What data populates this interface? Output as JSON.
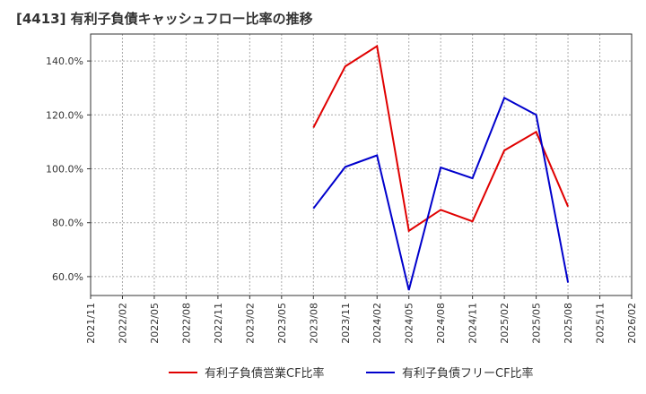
{
  "chart_data": {
    "type": "line",
    "title": "[4413]  有利子負債キャッシュフロー比率の推移",
    "xlabel": "",
    "ylabel": "",
    "ylim": [
      53,
      150
    ],
    "yticks": [
      {
        "value": 60,
        "label": "60.0%"
      },
      {
        "value": 80,
        "label": "80.0%"
      },
      {
        "value": 100,
        "label": "100.0%"
      },
      {
        "value": 120,
        "label": "120.0%"
      },
      {
        "value": 140,
        "label": "140.0%"
      }
    ],
    "xticks": [
      "2021/11",
      "2022/02",
      "2022/05",
      "2022/08",
      "2022/11",
      "2023/02",
      "2023/05",
      "2023/08",
      "2023/11",
      "2024/02",
      "2024/05",
      "2024/08",
      "2024/11",
      "2025/02",
      "2025/05",
      "2025/08",
      "2025/11",
      "2026/02"
    ],
    "grid": true,
    "legend_position": "bottom",
    "series": [
      {
        "name": "有利子負債営業CF比率",
        "color": "#e00000",
        "points": [
          {
            "x": "2023/08",
            "y": 115.3
          },
          {
            "x": "2023/11",
            "y": 138.0
          },
          {
            "x": "2024/02",
            "y": 145.5
          },
          {
            "x": "2024/05",
            "y": 77.0
          },
          {
            "x": "2024/08",
            "y": 84.8
          },
          {
            "x": "2024/11",
            "y": 80.5
          },
          {
            "x": "2025/02",
            "y": 106.8
          },
          {
            "x": "2025/05",
            "y": 113.7
          },
          {
            "x": "2025/08",
            "y": 86.0
          }
        ]
      },
      {
        "name": "有利子負債フリーCF比率",
        "color": "#0000cc",
        "points": [
          {
            "x": "2023/08",
            "y": 85.3
          },
          {
            "x": "2023/11",
            "y": 100.7
          },
          {
            "x": "2024/02",
            "y": 105.0
          },
          {
            "x": "2024/05",
            "y": 55.0
          },
          {
            "x": "2024/08",
            "y": 100.5
          },
          {
            "x": "2024/11",
            "y": 96.5
          },
          {
            "x": "2025/02",
            "y": 126.3
          },
          {
            "x": "2025/05",
            "y": 120.0
          },
          {
            "x": "2025/08",
            "y": 57.8
          }
        ]
      }
    ]
  }
}
